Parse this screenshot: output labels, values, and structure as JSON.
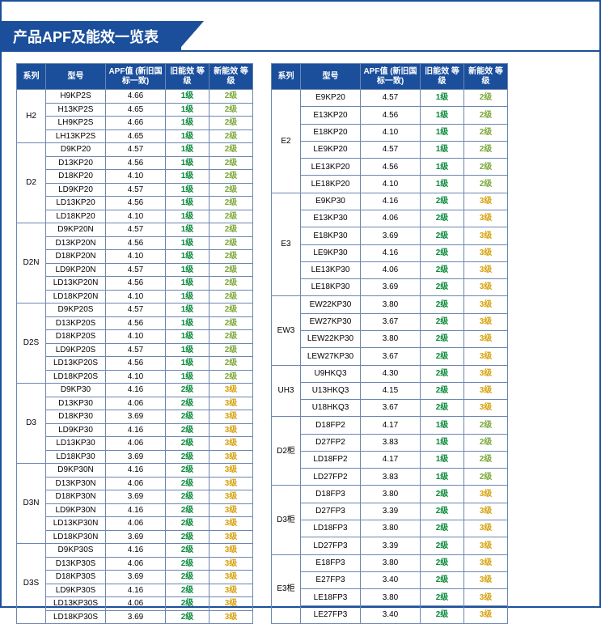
{
  "title": "产品APF及能效一览表",
  "headers": {
    "series": "系列",
    "model": "型号",
    "apf": "APF值\n(新旧国标一致)",
    "old": "旧能效\n等级",
    "new": "新能效\n等级"
  },
  "colors": {
    "brand": "#1b4f9c",
    "border": "#6b86b0",
    "level_green": "#0a8a3a",
    "level_olive": "#7da83a",
    "level_amber": "#d6a20c"
  },
  "left": [
    {
      "series": "H2",
      "rows": [
        {
          "model": "H9KP2S",
          "apf": "4.66",
          "old": "1级",
          "new": "2级",
          "oc": "lvl1",
          "nc": "lvl2b"
        },
        {
          "model": "H13KP2S",
          "apf": "4.65",
          "old": "1级",
          "new": "2级",
          "oc": "lvl1",
          "nc": "lvl2b"
        },
        {
          "model": "LH9KP2S",
          "apf": "4.66",
          "old": "1级",
          "new": "2级",
          "oc": "lvl1",
          "nc": "lvl2b"
        },
        {
          "model": "LH13KP2S",
          "apf": "4.65",
          "old": "1级",
          "new": "2级",
          "oc": "lvl1",
          "nc": "lvl2b"
        }
      ]
    },
    {
      "series": "D2",
      "rows": [
        {
          "model": "D9KP20",
          "apf": "4.57",
          "old": "1级",
          "new": "2级",
          "oc": "lvl1",
          "nc": "lvl2b"
        },
        {
          "model": "D13KP20",
          "apf": "4.56",
          "old": "1级",
          "new": "2级",
          "oc": "lvl1",
          "nc": "lvl2b"
        },
        {
          "model": "D18KP20",
          "apf": "4.10",
          "old": "1级",
          "new": "2级",
          "oc": "lvl1",
          "nc": "lvl2b"
        },
        {
          "model": "LD9KP20",
          "apf": "4.57",
          "old": "1级",
          "new": "2级",
          "oc": "lvl1",
          "nc": "lvl2b"
        },
        {
          "model": "LD13KP20",
          "apf": "4.56",
          "old": "1级",
          "new": "2级",
          "oc": "lvl1",
          "nc": "lvl2b"
        },
        {
          "model": "LD18KP20",
          "apf": "4.10",
          "old": "1级",
          "new": "2级",
          "oc": "lvl1",
          "nc": "lvl2b"
        }
      ]
    },
    {
      "series": "D2N",
      "rows": [
        {
          "model": "D9KP20N",
          "apf": "4.57",
          "old": "1级",
          "new": "2级",
          "oc": "lvl1",
          "nc": "lvl2b"
        },
        {
          "model": "D13KP20N",
          "apf": "4.56",
          "old": "1级",
          "new": "2级",
          "oc": "lvl1",
          "nc": "lvl2b"
        },
        {
          "model": "D18KP20N",
          "apf": "4.10",
          "old": "1级",
          "new": "2级",
          "oc": "lvl1",
          "nc": "lvl2b"
        },
        {
          "model": "LD9KP20N",
          "apf": "4.57",
          "old": "1级",
          "new": "2级",
          "oc": "lvl1",
          "nc": "lvl2b"
        },
        {
          "model": "LD13KP20N",
          "apf": "4.56",
          "old": "1级",
          "new": "2级",
          "oc": "lvl1",
          "nc": "lvl2b"
        },
        {
          "model": "LD18KP20N",
          "apf": "4.10",
          "old": "1级",
          "new": "2级",
          "oc": "lvl1",
          "nc": "lvl2b"
        }
      ]
    },
    {
      "series": "D2S",
      "rows": [
        {
          "model": "D9KP20S",
          "apf": "4.57",
          "old": "1级",
          "new": "2级",
          "oc": "lvl1",
          "nc": "lvl2b"
        },
        {
          "model": "D13KP20S",
          "apf": "4.56",
          "old": "1级",
          "new": "2级",
          "oc": "lvl1",
          "nc": "lvl2b"
        },
        {
          "model": "D18KP20S",
          "apf": "4.10",
          "old": "1级",
          "new": "2级",
          "oc": "lvl1",
          "nc": "lvl2b"
        },
        {
          "model": "LD9KP20S",
          "apf": "4.57",
          "old": "1级",
          "new": "2级",
          "oc": "lvl1",
          "nc": "lvl2b"
        },
        {
          "model": "LD13KP20S",
          "apf": "4.56",
          "old": "1级",
          "new": "2级",
          "oc": "lvl1",
          "nc": "lvl2b"
        },
        {
          "model": "LD18KP20S",
          "apf": "4.10",
          "old": "1级",
          "new": "2级",
          "oc": "lvl1",
          "nc": "lvl2b"
        }
      ]
    },
    {
      "series": "D3",
      "rows": [
        {
          "model": "D9KP30",
          "apf": "4.16",
          "old": "2级",
          "new": "3级",
          "oc": "lvl2",
          "nc": "lvl3"
        },
        {
          "model": "D13KP30",
          "apf": "4.06",
          "old": "2级",
          "new": "3级",
          "oc": "lvl2",
          "nc": "lvl3"
        },
        {
          "model": "D18KP30",
          "apf": "3.69",
          "old": "2级",
          "new": "3级",
          "oc": "lvl2",
          "nc": "lvl3"
        },
        {
          "model": "LD9KP30",
          "apf": "4.16",
          "old": "2级",
          "new": "3级",
          "oc": "lvl2",
          "nc": "lvl3"
        },
        {
          "model": "LD13KP30",
          "apf": "4.06",
          "old": "2级",
          "new": "3级",
          "oc": "lvl2",
          "nc": "lvl3"
        },
        {
          "model": "LD18KP30",
          "apf": "3.69",
          "old": "2级",
          "new": "3级",
          "oc": "lvl2",
          "nc": "lvl3"
        }
      ]
    },
    {
      "series": "D3N",
      "rows": [
        {
          "model": "D9KP30N",
          "apf": "4.16",
          "old": "2级",
          "new": "3级",
          "oc": "lvl2",
          "nc": "lvl3"
        },
        {
          "model": "D13KP30N",
          "apf": "4.06",
          "old": "2级",
          "new": "3级",
          "oc": "lvl2",
          "nc": "lvl3"
        },
        {
          "model": "D18KP30N",
          "apf": "3.69",
          "old": "2级",
          "new": "3级",
          "oc": "lvl2",
          "nc": "lvl3"
        },
        {
          "model": "LD9KP30N",
          "apf": "4.16",
          "old": "2级",
          "new": "3级",
          "oc": "lvl2",
          "nc": "lvl3"
        },
        {
          "model": "LD13KP30N",
          "apf": "4.06",
          "old": "2级",
          "new": "3级",
          "oc": "lvl2",
          "nc": "lvl3"
        },
        {
          "model": "LD18KP30N",
          "apf": "3.69",
          "old": "2级",
          "new": "3级",
          "oc": "lvl2",
          "nc": "lvl3"
        }
      ]
    },
    {
      "series": "D3S",
      "rows": [
        {
          "model": "D9KP30S",
          "apf": "4.16",
          "old": "2级",
          "new": "3级",
          "oc": "lvl2",
          "nc": "lvl3"
        },
        {
          "model": "D13KP30S",
          "apf": "4.06",
          "old": "2级",
          "new": "3级",
          "oc": "lvl2",
          "nc": "lvl3"
        },
        {
          "model": "D18KP30S",
          "apf": "3.69",
          "old": "2级",
          "new": "3级",
          "oc": "lvl2",
          "nc": "lvl3"
        },
        {
          "model": "LD9KP30S",
          "apf": "4.16",
          "old": "2级",
          "new": "3级",
          "oc": "lvl2",
          "nc": "lvl3"
        },
        {
          "model": "LD13KP30S",
          "apf": "4.06",
          "old": "2级",
          "new": "3级",
          "oc": "lvl2",
          "nc": "lvl3"
        },
        {
          "model": "LD18KP30S",
          "apf": "3.69",
          "old": "2级",
          "new": "3级",
          "oc": "lvl2",
          "nc": "lvl3"
        }
      ]
    }
  ],
  "right": [
    {
      "series": "E2",
      "rows": [
        {
          "model": "E9KP20",
          "apf": "4.57",
          "old": "1级",
          "new": "2级",
          "oc": "lvl1",
          "nc": "lvl2b"
        },
        {
          "model": "E13KP20",
          "apf": "4.56",
          "old": "1级",
          "new": "2级",
          "oc": "lvl1",
          "nc": "lvl2b"
        },
        {
          "model": "E18KP20",
          "apf": "4.10",
          "old": "1级",
          "new": "2级",
          "oc": "lvl1",
          "nc": "lvl2b"
        },
        {
          "model": "LE9KP20",
          "apf": "4.57",
          "old": "1级",
          "new": "2级",
          "oc": "lvl1",
          "nc": "lvl2b"
        },
        {
          "model": "LE13KP20",
          "apf": "4.56",
          "old": "1级",
          "new": "2级",
          "oc": "lvl1",
          "nc": "lvl2b"
        },
        {
          "model": "LE18KP20",
          "apf": "4.10",
          "old": "1级",
          "new": "2级",
          "oc": "lvl1",
          "nc": "lvl2b"
        }
      ]
    },
    {
      "series": "E3",
      "rows": [
        {
          "model": "E9KP30",
          "apf": "4.16",
          "old": "2级",
          "new": "3级",
          "oc": "lvl2",
          "nc": "lvl3"
        },
        {
          "model": "E13KP30",
          "apf": "4.06",
          "old": "2级",
          "new": "3级",
          "oc": "lvl2",
          "nc": "lvl3"
        },
        {
          "model": "E18KP30",
          "apf": "3.69",
          "old": "2级",
          "new": "3级",
          "oc": "lvl2",
          "nc": "lvl3"
        },
        {
          "model": "LE9KP30",
          "apf": "4.16",
          "old": "2级",
          "new": "3级",
          "oc": "lvl2",
          "nc": "lvl3"
        },
        {
          "model": "LE13KP30",
          "apf": "4.06",
          "old": "2级",
          "new": "3级",
          "oc": "lvl2",
          "nc": "lvl3"
        },
        {
          "model": "LE18KP30",
          "apf": "3.69",
          "old": "2级",
          "new": "3级",
          "oc": "lvl2",
          "nc": "lvl3"
        }
      ]
    },
    {
      "series": "EW3",
      "rows": [
        {
          "model": "EW22KP30",
          "apf": "3.80",
          "old": "2级",
          "new": "3级",
          "oc": "lvl2",
          "nc": "lvl3"
        },
        {
          "model": "EW27KP30",
          "apf": "3.67",
          "old": "2级",
          "new": "3级",
          "oc": "lvl2",
          "nc": "lvl3"
        },
        {
          "model": "LEW22KP30",
          "apf": "3.80",
          "old": "2级",
          "new": "3级",
          "oc": "lvl2",
          "nc": "lvl3"
        },
        {
          "model": "LEW27KP30",
          "apf": "3.67",
          "old": "2级",
          "new": "3级",
          "oc": "lvl2",
          "nc": "lvl3"
        }
      ]
    },
    {
      "series": "UH3",
      "rows": [
        {
          "model": "U9HKQ3",
          "apf": "4.30",
          "old": "2级",
          "new": "3级",
          "oc": "lvl2",
          "nc": "lvl3"
        },
        {
          "model": "U13HKQ3",
          "apf": "4.15",
          "old": "2级",
          "new": "3级",
          "oc": "lvl2",
          "nc": "lvl3"
        },
        {
          "model": "U18HKQ3",
          "apf": "3.67",
          "old": "2级",
          "new": "3级",
          "oc": "lvl2",
          "nc": "lvl3"
        }
      ]
    },
    {
      "series": "D2柜",
      "rows": [
        {
          "model": "D18FP2",
          "apf": "4.17",
          "old": "1级",
          "new": "2级",
          "oc": "lvl1",
          "nc": "lvl2b"
        },
        {
          "model": "D27FP2",
          "apf": "3.83",
          "old": "1级",
          "new": "2级",
          "oc": "lvl1",
          "nc": "lvl2b"
        },
        {
          "model": "LD18FP2",
          "apf": "4.17",
          "old": "1级",
          "new": "2级",
          "oc": "lvl1",
          "nc": "lvl2b"
        },
        {
          "model": "LD27FP2",
          "apf": "3.83",
          "old": "1级",
          "new": "2级",
          "oc": "lvl1",
          "nc": "lvl2b"
        }
      ]
    },
    {
      "series": "D3柜",
      "rows": [
        {
          "model": "D18FP3",
          "apf": "3.80",
          "old": "2级",
          "new": "3级",
          "oc": "lvl2",
          "nc": "lvl3"
        },
        {
          "model": "D27FP3",
          "apf": "3.39",
          "old": "2级",
          "new": "3级",
          "oc": "lvl2",
          "nc": "lvl3"
        },
        {
          "model": "LD18FP3",
          "apf": "3.80",
          "old": "2级",
          "new": "3级",
          "oc": "lvl2",
          "nc": "lvl3"
        },
        {
          "model": "LD27FP3",
          "apf": "3.39",
          "old": "2级",
          "new": "3级",
          "oc": "lvl2",
          "nc": "lvl3"
        }
      ]
    },
    {
      "series": "E3柜",
      "rows": [
        {
          "model": "E18FP3",
          "apf": "3.80",
          "old": "2级",
          "new": "3级",
          "oc": "lvl2",
          "nc": "lvl3"
        },
        {
          "model": "E27FP3",
          "apf": "3.40",
          "old": "2级",
          "new": "3级",
          "oc": "lvl2",
          "nc": "lvl3"
        },
        {
          "model": "LE18FP3",
          "apf": "3.80",
          "old": "2级",
          "new": "3级",
          "oc": "lvl2",
          "nc": "lvl3"
        },
        {
          "model": "LE27FP3",
          "apf": "3.40",
          "old": "2级",
          "new": "3级",
          "oc": "lvl2",
          "nc": "lvl3"
        }
      ]
    }
  ]
}
